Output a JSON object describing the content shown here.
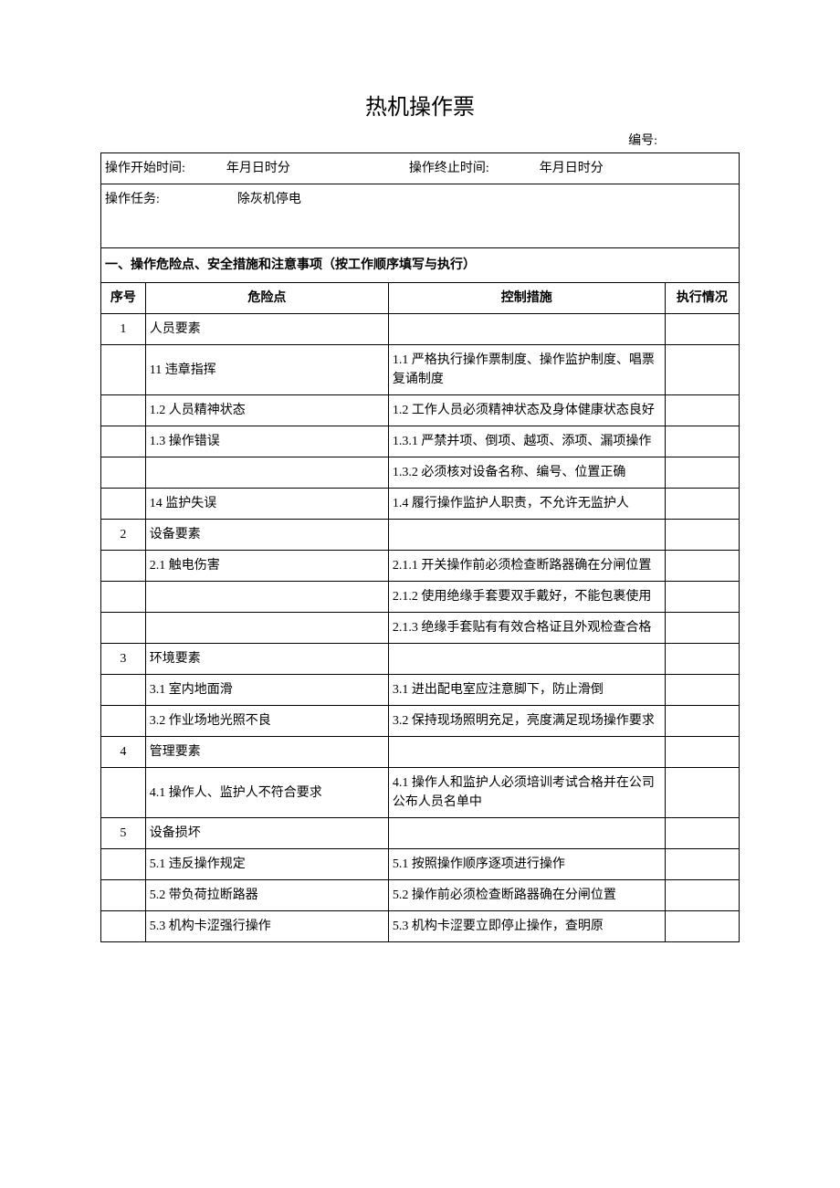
{
  "title": "热机操作票",
  "serial_label": "编号:",
  "time_row": {
    "start_label": "操作开始时间:",
    "start_value": "年月日时分",
    "end_label": "操作终止时间:",
    "end_value": "年月日时分"
  },
  "task_row": {
    "label": "操作任务:",
    "value": "除灰机停电"
  },
  "section_header": "一、操作危险点、安全措施和注意事项（按工作顺序填写与执行）",
  "columns": {
    "seq": "序号",
    "risk": "危险点",
    "measure": "控制措施",
    "status": "执行情况"
  },
  "rows": [
    {
      "seq": "1",
      "risk": "人员要素",
      "measure": "",
      "status": ""
    },
    {
      "seq": "",
      "risk": "11 违章指挥",
      "measure": "1.1 严格执行操作票制度、操作监护制度、唱票复诵制度",
      "status": ""
    },
    {
      "seq": "",
      "risk": "1.2 人员精神状态",
      "measure": "1.2 工作人员必须精神状态及身体健康状态良好",
      "status": ""
    },
    {
      "seq": "",
      "risk": "1.3 操作错误",
      "measure": "1.3.1 严禁并项、倒项、越项、添项、漏项操作",
      "status": ""
    },
    {
      "seq": "",
      "risk": "",
      "measure": "1.3.2 必须核对设备名称、编号、位置正确",
      "status": ""
    },
    {
      "seq": "",
      "risk": "14 监护失误",
      "measure": "1.4 履行操作监护人职责，不允许无监护人",
      "status": ""
    },
    {
      "seq": "2",
      "risk": "设备要素",
      "measure": "",
      "status": ""
    },
    {
      "seq": "",
      "risk": "2.1 触电伤害",
      "measure": "2.1.1 开关操作前必须检查断路器确在分闸位置",
      "status": ""
    },
    {
      "seq": "",
      "risk": "",
      "measure": "2.1.2 使用绝缘手套要双手戴好，不能包裹使用",
      "status": ""
    },
    {
      "seq": "",
      "risk": "",
      "measure": "2.1.3 绝缘手套贴有有效合格证且外观检查合格",
      "status": ""
    },
    {
      "seq": "3",
      "risk": "环境要素",
      "measure": "",
      "status": ""
    },
    {
      "seq": "",
      "risk": "3.1 室内地面滑",
      "measure": "3.1 进出配电室应注意脚下，防止滑倒",
      "status": ""
    },
    {
      "seq": "",
      "risk": "3.2 作业场地光照不良",
      "measure": "3.2 保持现场照明充足，亮度满足现场操作要求",
      "status": ""
    },
    {
      "seq": "4",
      "risk": "管理要素",
      "measure": "",
      "status": ""
    },
    {
      "seq": "",
      "risk": "4.1 操作人、监护人不符合要求",
      "measure": "4.1 操作人和监护人必须培训考试合格并在公司公布人员名单中",
      "status": ""
    },
    {
      "seq": "5",
      "risk": "设备损坏",
      "measure": "",
      "status": ""
    },
    {
      "seq": "",
      "risk": "5.1 违反操作规定",
      "measure": "5.1 按照操作顺序逐项进行操作",
      "status": ""
    },
    {
      "seq": "",
      "risk": "5.2 带负荷拉断路器",
      "measure": "5.2 操作前必须检查断路器确在分闸位置",
      "status": ""
    },
    {
      "seq": "",
      "risk": "5.3 机构卡涩强行操作",
      "measure": "5.3 机构卡涩要立即停止操作，查明原",
      "status": ""
    }
  ]
}
